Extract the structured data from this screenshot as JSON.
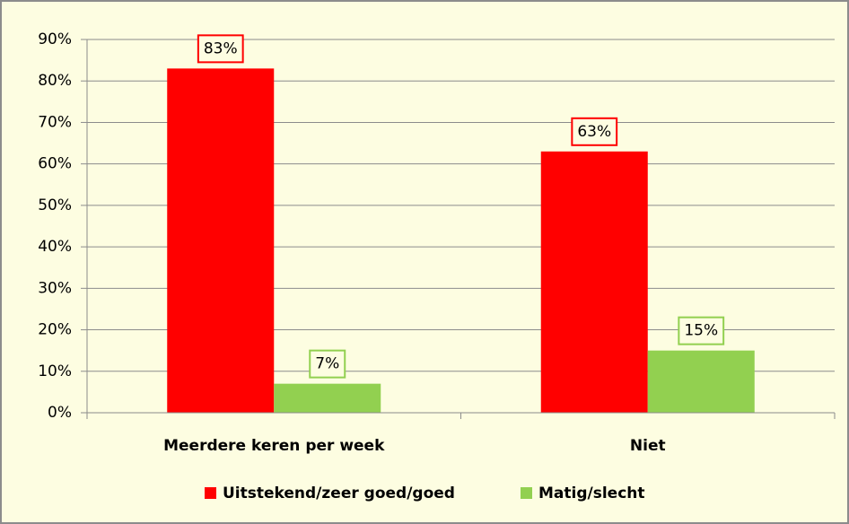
{
  "chart_data": {
    "type": "bar",
    "categories": [
      "Meerdere keren per week",
      "Niet"
    ],
    "series": [
      {
        "name": "Uitstekend/zeer goed/goed",
        "color": "#ff0000",
        "values": [
          83,
          63
        ],
        "value_labels": [
          "83%",
          "63%"
        ]
      },
      {
        "name": "Matig/slecht",
        "color": "#92d050",
        "values": [
          7,
          15
        ],
        "value_labels": [
          "7%",
          "15%"
        ]
      }
    ],
    "ylim": [
      0,
      90
    ],
    "yticks": [
      {
        "value": 0,
        "label": "0%"
      },
      {
        "value": 10,
        "label": "10%"
      },
      {
        "value": 20,
        "label": "20%"
      },
      {
        "value": 30,
        "label": "30%"
      },
      {
        "value": 40,
        "label": "40%"
      },
      {
        "value": 50,
        "label": "50%"
      },
      {
        "value": 60,
        "label": "60%"
      },
      {
        "value": 70,
        "label": "70%"
      },
      {
        "value": 80,
        "label": "80%"
      },
      {
        "value": 90,
        "label": "90%"
      }
    ],
    "grid": true,
    "legend": "bottom"
  }
}
